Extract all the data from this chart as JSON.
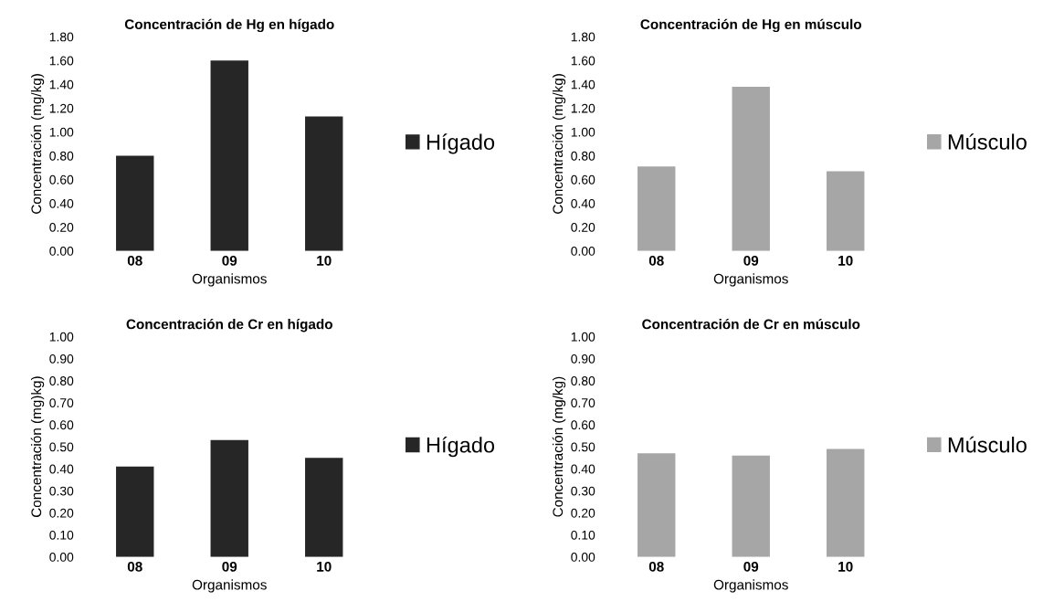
{
  "chart_data": [
    {
      "type": "bar",
      "title": "Concentración de Hg en hígado",
      "xlabel": "Organismos",
      "ylabel": "Concentración (mg/kg)",
      "categories": [
        "08",
        "09",
        "10"
      ],
      "series": [
        {
          "name": "Hígado",
          "color": "#262626",
          "values": [
            0.8,
            1.6,
            1.13
          ]
        }
      ],
      "ylim": [
        0,
        1.8
      ],
      "yticks": [
        {
          "value": 0,
          "label": "0.00"
        },
        {
          "value": 0.2,
          "label": "0.20"
        },
        {
          "value": 0.4,
          "label": "0.40"
        },
        {
          "value": 0.6,
          "label": "0.60"
        },
        {
          "value": 0.8,
          "label": "0.80"
        },
        {
          "value": 1.0,
          "label": "1.00"
        },
        {
          "value": 1.2,
          "label": "1.20"
        },
        {
          "value": 1.4,
          "label": "1.40"
        },
        {
          "value": 1.6,
          "label": "1.60"
        },
        {
          "value": 1.8,
          "label": "1.80"
        }
      ],
      "legend": "right"
    },
    {
      "type": "bar",
      "title": "Concentración de Hg en músculo",
      "xlabel": "Organismos",
      "ylabel": "Concentración (mg/kg)",
      "categories": [
        "08",
        "09",
        "10"
      ],
      "series": [
        {
          "name": "Músculo",
          "color": "#a6a6a6",
          "values": [
            0.71,
            1.38,
            0.67
          ]
        }
      ],
      "ylim": [
        0,
        1.8
      ],
      "yticks": [
        {
          "value": 0,
          "label": "0.00"
        },
        {
          "value": 0.2,
          "label": "0.20"
        },
        {
          "value": 0.4,
          "label": "0.40"
        },
        {
          "value": 0.6,
          "label": "0.60"
        },
        {
          "value": 0.8,
          "label": "0.80"
        },
        {
          "value": 1.0,
          "label": "1.00"
        },
        {
          "value": 1.2,
          "label": "1.20"
        },
        {
          "value": 1.4,
          "label": "1.40"
        },
        {
          "value": 1.6,
          "label": "1.60"
        },
        {
          "value": 1.8,
          "label": "1.80"
        }
      ],
      "legend": "right"
    },
    {
      "type": "bar",
      "title": "Concentración de Cr en hígado",
      "xlabel": "Organismos",
      "ylabel": "Concentración (mg)kg)",
      "categories": [
        "08",
        "09",
        "10"
      ],
      "series": [
        {
          "name": "Hígado",
          "color": "#262626",
          "values": [
            0.41,
            0.53,
            0.45
          ]
        }
      ],
      "ylim": [
        0,
        1.0
      ],
      "yticks": [
        {
          "value": 0,
          "label": "0.00"
        },
        {
          "value": 0.1,
          "label": "0.10"
        },
        {
          "value": 0.2,
          "label": "0.20"
        },
        {
          "value": 0.3,
          "label": "0.30"
        },
        {
          "value": 0.4,
          "label": "0.40"
        },
        {
          "value": 0.5,
          "label": "0.50"
        },
        {
          "value": 0.6,
          "label": "0.60"
        },
        {
          "value": 0.7,
          "label": "0.70"
        },
        {
          "value": 0.8,
          "label": "0.80"
        },
        {
          "value": 0.9,
          "label": "0.90"
        },
        {
          "value": 1.0,
          "label": "1.00"
        }
      ],
      "legend": "right"
    },
    {
      "type": "bar",
      "title": "Concentración de Cr en músculo",
      "xlabel": "Organismos",
      "ylabel": "Concentración (mg/kg)",
      "categories": [
        "08",
        "09",
        "10"
      ],
      "series": [
        {
          "name": "Músculo",
          "color": "#a6a6a6",
          "values": [
            0.47,
            0.46,
            0.49
          ]
        }
      ],
      "ylim": [
        0,
        1.0
      ],
      "yticks": [
        {
          "value": 0,
          "label": "0.00"
        },
        {
          "value": 0.1,
          "label": "0.10"
        },
        {
          "value": 0.2,
          "label": "0.20"
        },
        {
          "value": 0.3,
          "label": "0.30"
        },
        {
          "value": 0.4,
          "label": "0.40"
        },
        {
          "value": 0.5,
          "label": "0.50"
        },
        {
          "value": 0.6,
          "label": "0.60"
        },
        {
          "value": 0.7,
          "label": "0.70"
        },
        {
          "value": 0.8,
          "label": "0.80"
        },
        {
          "value": 0.9,
          "label": "0.90"
        },
        {
          "value": 1.0,
          "label": "1.00"
        }
      ],
      "legend": "right"
    }
  ]
}
